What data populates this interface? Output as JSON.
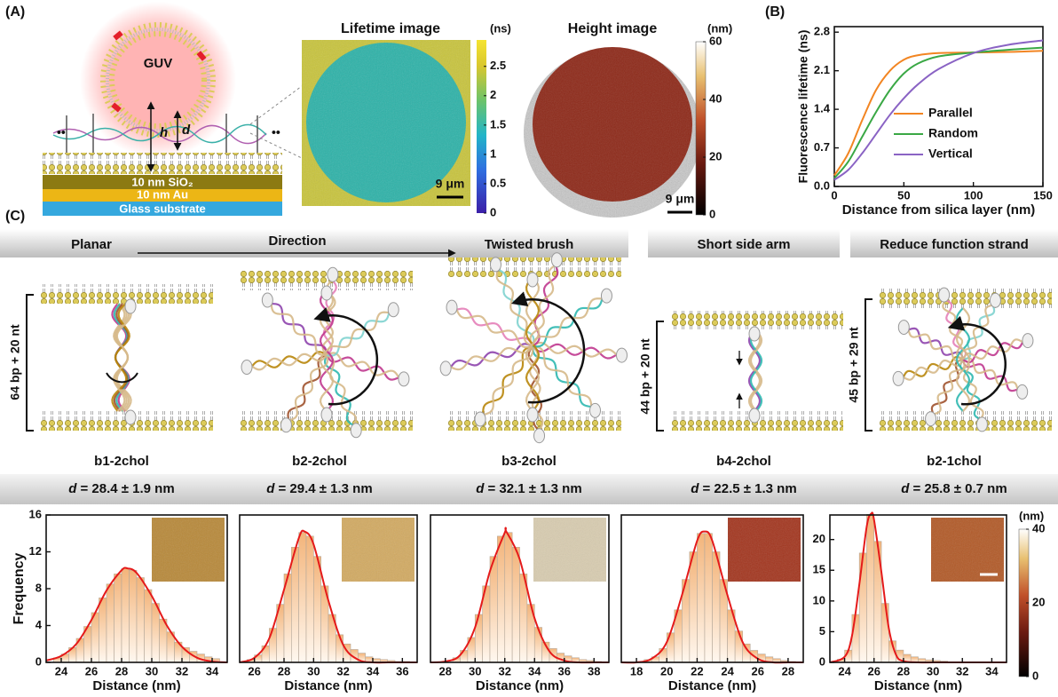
{
  "panel_a": {
    "label": "(A)",
    "guv": "GUV",
    "h": "h",
    "d": "d",
    "layers": [
      "10 nm SiO₂",
      "10 nm Au",
      "Glass substrate"
    ],
    "lifetime": {
      "title": "Lifetime image",
      "unit": "(ns)",
      "lim": [
        0,
        2.95
      ],
      "ticks": [
        0,
        0.5,
        1,
        1.5,
        2,
        2.5
      ],
      "scale": "9 μm"
    },
    "height": {
      "title": "Height image",
      "unit": "(nm)",
      "lim": [
        0,
        60
      ],
      "ticks": [
        0,
        20,
        40,
        60
      ],
      "scale": "9 μm"
    }
  },
  "chart_data": [
    {
      "type": "line",
      "label": "(B)",
      "x_label": "Distance from silica layer (nm)",
      "y_label": "Fluorescence lifetime (ns)",
      "x": [
        0,
        10,
        20,
        30,
        40,
        50,
        60,
        75,
        100,
        125,
        150
      ],
      "series": [
        {
          "name": "Parallel",
          "color": "#f28522",
          "values": [
            0.2,
            0.6,
            1.2,
            1.75,
            2.1,
            2.3,
            2.38,
            2.42,
            2.43,
            2.44,
            2.46
          ]
        },
        {
          "name": "Random",
          "color": "#3aa845",
          "values": [
            0.15,
            0.45,
            0.9,
            1.35,
            1.75,
            2.05,
            2.23,
            2.36,
            2.43,
            2.48,
            2.52
          ]
        },
        {
          "name": "Vertical",
          "color": "#8a63c4",
          "values": [
            0.12,
            0.3,
            0.6,
            0.95,
            1.3,
            1.6,
            1.85,
            2.13,
            2.42,
            2.57,
            2.65
          ]
        }
      ],
      "xlim": [
        0,
        150
      ],
      "xticks": [
        0,
        50,
        100,
        150
      ],
      "ylim": [
        0,
        2.9
      ],
      "yticks": [
        {
          "value": 0,
          "label": "0.0"
        },
        0.7,
        1.4,
        2.1,
        2.8
      ],
      "legend": "right"
    },
    {
      "type": "histogram",
      "x_label": "Distance (nm)",
      "y_label": "Frequency",
      "bins": [
        23.5,
        24,
        24.5,
        25,
        25.5,
        26,
        26.5,
        27,
        27.5,
        28,
        28.5,
        29,
        29.5,
        30,
        30.5,
        31,
        31.5,
        32,
        32.5,
        33,
        33.5,
        34,
        34.5
      ],
      "counts": [
        0.5,
        0.9,
        1.6,
        2.6,
        3.9,
        5.4,
        7.0,
        8.5,
        9.6,
        10.2,
        10.0,
        9.2,
        7.9,
        6.4,
        4.7,
        3.3,
        2.2,
        1.6,
        1.2,
        0.9,
        0.6,
        0.4
      ],
      "fit": {
        "color": "#e51a1a",
        "x": [
          23,
          24,
          25,
          26,
          27,
          28,
          28.4,
          29,
          30,
          31,
          32,
          33,
          34,
          35
        ],
        "values": [
          0.2,
          0.7,
          2.0,
          4.6,
          7.8,
          10.0,
          10.2,
          9.7,
          7.2,
          4.0,
          1.7,
          0.5,
          0.1,
          0
        ]
      },
      "xlim": [
        23,
        35
      ],
      "xticks": [
        24,
        26,
        28,
        30,
        32,
        34
      ],
      "ylim": [
        0,
        16
      ],
      "yticks": [
        0,
        4,
        8,
        12,
        16
      ]
    },
    {
      "type": "histogram",
      "x_label": "Distance (nm)",
      "bins": [
        25.5,
        26,
        26.5,
        27,
        27.5,
        28,
        28.5,
        29,
        29.5,
        30,
        30.5,
        31,
        31.5,
        32,
        32.5,
        33,
        33.5,
        34,
        34.5,
        35,
        35.5,
        36,
        36.5
      ],
      "counts": [
        0.3,
        0.8,
        1.8,
        3.7,
        6.3,
        9.6,
        12.5,
        14.1,
        13.7,
        11.5,
        8.3,
        5.2,
        3.0,
        2.0,
        1.4,
        1.0,
        0.6,
        0.4,
        0.3,
        0.2,
        0.1,
        0.1
      ],
      "fit": {
        "color": "#e51a1a",
        "x": [
          25,
          26,
          27,
          28,
          29,
          29.4,
          30,
          31,
          32,
          33,
          34,
          35,
          36,
          37
        ],
        "values": [
          0,
          0.5,
          2.6,
          7.9,
          13.5,
          14.2,
          12.8,
          6.7,
          1.9,
          0.3,
          0,
          0,
          0,
          0
        ]
      },
      "xlim": [
        25,
        37
      ],
      "xticks": [
        26,
        28,
        30,
        32,
        34,
        36
      ],
      "ylim": [
        0,
        16
      ]
    },
    {
      "type": "histogram",
      "x_label": "Distance (nm)",
      "bins": [
        28.5,
        29,
        29.5,
        30,
        30.5,
        31,
        31.5,
        32,
        32.5,
        33,
        33.5,
        34,
        34.5,
        35,
        35.5,
        36,
        36.5,
        37,
        37.5,
        38,
        38.5
      ],
      "counts": [
        0.5,
        1.3,
        2.7,
        5.2,
        8.3,
        11.5,
        13.7,
        14.1,
        12.5,
        9.6,
        6.3,
        3.8,
        2.2,
        1.5,
        1.0,
        0.7,
        0.5,
        0.3,
        0.2,
        0.1
      ],
      "fit": {
        "color": "#e51a1a",
        "x": [
          27,
          28,
          29,
          30,
          31,
          32,
          32.1,
          33,
          34,
          35,
          36,
          37,
          38,
          39
        ],
        "values": [
          0,
          0.1,
          0.8,
          3.8,
          9.9,
          14.1,
          14.2,
          11.2,
          4.8,
          1.2,
          0.2,
          0,
          0,
          0
        ]
      },
      "xlim": [
        27,
        39
      ],
      "xticks": [
        28,
        30,
        32,
        34,
        36,
        38
      ],
      "ylim": [
        0,
        16
      ]
    },
    {
      "type": "histogram",
      "x_label": "Distance (nm)",
      "bins": [
        18.5,
        19,
        19.5,
        20,
        20.5,
        21,
        21.5,
        22,
        22.5,
        23,
        23.5,
        24,
        24.5,
        25,
        25.5,
        26,
        26.5,
        27,
        27.5,
        28,
        28.5
      ],
      "counts": [
        0.3,
        0.6,
        1.5,
        3.2,
        5.7,
        9.0,
        12.0,
        14.0,
        14.0,
        12.0,
        9.0,
        5.7,
        3.4,
        2.0,
        1.3,
        0.9,
        0.6,
        0.4,
        0.2,
        0.1
      ],
      "fit": {
        "color": "#e51a1a",
        "x": [
          17,
          18,
          19,
          20,
          21,
          22,
          22.5,
          23,
          24,
          25,
          26,
          27,
          28,
          29
        ],
        "values": [
          0,
          0,
          0.4,
          2.2,
          7.3,
          13.2,
          14.2,
          13.2,
          7.3,
          2.2,
          0.4,
          0,
          0,
          0
        ]
      },
      "xlim": [
        17,
        29
      ],
      "xticks": [
        18,
        20,
        22,
        24,
        26,
        28
      ],
      "ylim": [
        0,
        16
      ]
    },
    {
      "type": "histogram",
      "x_label": "Distance (nm)",
      "bins": [
        23.5,
        24,
        24.5,
        25,
        25.5,
        26,
        26.5,
        27,
        27.5,
        28,
        28.5,
        29,
        29.5,
        30,
        30.5,
        31
      ],
      "counts": [
        0.5,
        2.0,
        7.8,
        17.8,
        24.1,
        19.7,
        9.6,
        3.5,
        2.0,
        1.3,
        0.9,
        0.6,
        0.4,
        0.3,
        0.2
      ],
      "fit": {
        "color": "#e51a1a",
        "x": [
          23,
          24,
          24.5,
          25,
          25.5,
          25.8,
          26,
          26.5,
          27,
          27.5,
          28,
          29,
          31,
          35
        ],
        "values": [
          0,
          0.9,
          4.3,
          12.7,
          22.1,
          24.2,
          23.2,
          14.7,
          5.6,
          1.2,
          0.2,
          0,
          0,
          0
        ]
      },
      "xlim": [
        23,
        35
      ],
      "xticks": [
        24,
        26,
        28,
        30,
        32,
        34
      ],
      "ylim": [
        0,
        24
      ],
      "yticks": [
        0,
        5,
        10,
        15,
        20
      ]
    }
  ],
  "panel_c": {
    "label": "(C)",
    "headers": [
      "Planar",
      "Direction",
      "Twisted brush",
      "Short side arm",
      "Reduce function strand"
    ],
    "lengths": [
      "64 bp + 20 nt",
      "44 bp + 20 nt",
      "45 bp + 29 nt"
    ],
    "names": [
      "b1-2chol",
      "b2-2chol",
      "b3-2chol",
      "b4-2chol",
      "b2-1chol"
    ],
    "distances": [
      {
        "symbol": "d",
        "text": "= 28.4 ± 1.9 nm"
      },
      {
        "symbol": "d",
        "text": "= 29.4 ± 1.3 nm"
      },
      {
        "symbol": "d",
        "text": "= 32.1 ± 1.3 nm"
      },
      {
        "symbol": "d",
        "text": "= 22.5 ± 1.3 nm"
      },
      {
        "symbol": "d",
        "text": "= 25.8 ± 0.7 nm"
      }
    ],
    "colorbar": {
      "unit": "(nm)",
      "lim": [
        0,
        40
      ],
      "ticks": [
        0,
        20,
        40
      ]
    }
  }
}
